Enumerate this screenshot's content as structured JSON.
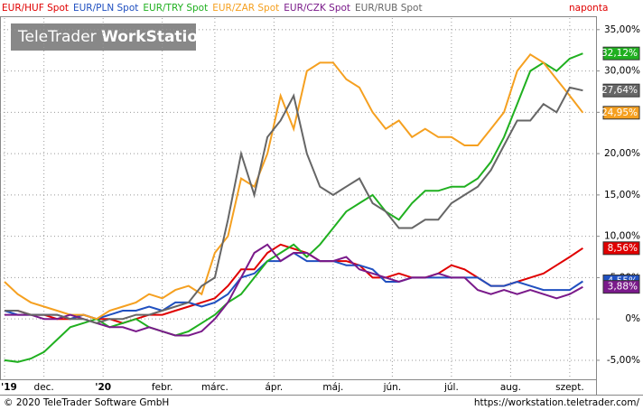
{
  "chart_data": {
    "type": "line",
    "watermark": [
      "TeleTrader",
      "WorkStation"
    ],
    "frequency": "naponta",
    "footer_left": "© 2020 TeleTrader Software GmbH",
    "footer_right": "https://workstation.teletrader.com/",
    "grid": true,
    "x": [
      0,
      1,
      2,
      3,
      4,
      5,
      6,
      7,
      8,
      9,
      10,
      11,
      12,
      13,
      14,
      15,
      16,
      17,
      18,
      19,
      20,
      21,
      22,
      23,
      24,
      25,
      26,
      27,
      28,
      29,
      30,
      31,
      32,
      33,
      34,
      35,
      36,
      37,
      38,
      39,
      40,
      41,
      42,
      43,
      44
    ],
    "xlim": [
      0,
      45
    ],
    "xticks": [
      {
        "value": 0,
        "label": "'19"
      },
      {
        "value": 3,
        "label": "dec."
      },
      {
        "value": 7.5,
        "label": "'20"
      },
      {
        "value": 12,
        "label": "febr."
      },
      {
        "value": 16,
        "label": "márc."
      },
      {
        "value": 20.5,
        "label": "ápr."
      },
      {
        "value": 25,
        "label": "máj."
      },
      {
        "value": 29.5,
        "label": "jún."
      },
      {
        "value": 34,
        "label": "júl."
      },
      {
        "value": 38.5,
        "label": "aug."
      },
      {
        "value": 43,
        "label": "szept."
      }
    ],
    "ylim": [
      -7.3,
      36.4
    ],
    "yticks": [
      {
        "value": 35,
        "label": "35,00%"
      },
      {
        "value": 30,
        "label": "30,00%"
      },
      {
        "value": 25,
        "label": "25,00%"
      },
      {
        "value": 20,
        "label": "20,00%"
      },
      {
        "value": 15,
        "label": "15,00%"
      },
      {
        "value": 10,
        "label": "10,00%"
      },
      {
        "value": 5,
        "label": "5,00%"
      },
      {
        "value": 0,
        "label": "0%"
      },
      {
        "value": -5,
        "label": "-5,00%"
      }
    ],
    "series": [
      {
        "name": "EUR/HUF Spot",
        "color": "#e00000",
        "values": [
          1,
          1,
          0.5,
          0.5,
          0,
          0,
          0.5,
          0,
          0,
          -0.5,
          0,
          0.5,
          0.5,
          1,
          1.5,
          2,
          2.5,
          4,
          6,
          6,
          8,
          9,
          8.5,
          8,
          7,
          7,
          7,
          6.5,
          5,
          5,
          5.5,
          5,
          5,
          5.5,
          6.5,
          6,
          5,
          4,
          4,
          4.5,
          5,
          5.5,
          6.5,
          7.5,
          8.56
        ],
        "value_labels": [
          null,
          null,
          null,
          null,
          null,
          null,
          null,
          null,
          null,
          null,
          null,
          null,
          null,
          null,
          null,
          null,
          null,
          null,
          null,
          null,
          null,
          null,
          null,
          null,
          null,
          null,
          null,
          null,
          null,
          null,
          null,
          null,
          null,
          null,
          null,
          null,
          null,
          null,
          null,
          null,
          null,
          null,
          null,
          null,
          "8,56%"
        ]
      },
      {
        "name": "EUR/PLN Spot",
        "color": "#2050c0",
        "values": [
          1,
          0.5,
          0.5,
          0.5,
          0.5,
          0,
          0.5,
          0,
          0.5,
          1,
          1,
          1.5,
          1,
          2,
          2,
          1.5,
          2,
          3,
          5,
          5.5,
          7,
          7,
          8,
          7,
          7,
          7,
          6.5,
          6.5,
          6,
          4.5,
          4.5,
          5,
          5,
          5,
          5,
          5,
          5,
          4,
          4,
          4.5,
          4,
          3.5,
          3.5,
          3.5,
          4.55
        ],
        "value_labels": [
          null,
          null,
          null,
          null,
          null,
          null,
          null,
          null,
          null,
          null,
          null,
          null,
          null,
          null,
          null,
          null,
          null,
          null,
          null,
          null,
          null,
          null,
          null,
          null,
          null,
          null,
          null,
          null,
          null,
          null,
          null,
          null,
          null,
          null,
          null,
          null,
          null,
          null,
          null,
          null,
          null,
          null,
          null,
          null,
          "4,55%"
        ]
      },
      {
        "name": "EUR/TRY Spot",
        "color": "#20b020",
        "values": [
          -5,
          -5.2,
          -4.8,
          -4,
          -2.5,
          -1,
          -0.5,
          0,
          -1,
          -0.5,
          0,
          -1,
          -1.5,
          -2,
          -1.5,
          -0.5,
          0.5,
          2,
          3,
          5,
          7,
          8,
          9,
          7.5,
          9,
          11,
          13,
          14,
          15,
          13,
          12,
          14,
          15.5,
          15.5,
          16,
          16,
          17,
          19,
          22,
          26,
          30,
          31,
          30,
          31.5,
          32.12
        ],
        "value_labels": [
          null,
          null,
          null,
          null,
          null,
          null,
          null,
          null,
          null,
          null,
          null,
          null,
          null,
          null,
          null,
          null,
          null,
          null,
          null,
          null,
          null,
          null,
          null,
          null,
          null,
          null,
          null,
          null,
          null,
          null,
          null,
          null,
          null,
          null,
          null,
          null,
          null,
          null,
          null,
          null,
          null,
          null,
          null,
          null,
          "32,12%"
        ]
      },
      {
        "name": "EUR/ZAR Spot",
        "color": "#f5a020",
        "values": [
          4.5,
          3,
          2,
          1.5,
          1,
          0.5,
          0.5,
          0,
          1,
          1.5,
          2,
          3,
          2.5,
          3.5,
          4,
          3,
          8,
          10,
          17,
          16,
          20,
          27,
          23,
          30,
          31,
          31,
          29,
          28,
          25,
          23,
          24,
          22,
          23,
          22,
          22,
          21,
          21,
          23,
          25,
          30,
          32,
          31,
          29,
          27,
          24.95
        ],
        "value_labels": [
          null,
          null,
          null,
          null,
          null,
          null,
          null,
          null,
          null,
          null,
          null,
          null,
          null,
          null,
          null,
          null,
          null,
          null,
          null,
          null,
          null,
          null,
          null,
          null,
          null,
          null,
          null,
          null,
          null,
          null,
          null,
          null,
          null,
          null,
          null,
          null,
          null,
          null,
          null,
          null,
          null,
          null,
          null,
          null,
          "24,95%"
        ]
      },
      {
        "name": "EUR/CZK Spot",
        "color": "#7a1a8a",
        "values": [
          0.5,
          0.5,
          0.5,
          0,
          0,
          0.5,
          0,
          -0.5,
          -1,
          -1,
          -1.5,
          -1,
          -1.5,
          -2,
          -2,
          -1.5,
          0,
          2,
          5,
          8,
          9,
          7,
          8,
          8,
          7,
          7,
          7.5,
          6,
          5.5,
          5,
          4.5,
          5,
          5,
          5.5,
          5,
          5,
          3.5,
          3,
          3.5,
          3,
          3.5,
          3,
          2.5,
          3,
          3.88
        ],
        "value_labels": [
          null,
          null,
          null,
          null,
          null,
          null,
          null,
          null,
          null,
          null,
          null,
          null,
          null,
          null,
          null,
          null,
          null,
          null,
          null,
          null,
          null,
          null,
          null,
          null,
          null,
          null,
          null,
          null,
          null,
          null,
          null,
          null,
          null,
          null,
          null,
          null,
          null,
          null,
          null,
          null,
          null,
          null,
          null,
          null,
          "3,88%"
        ]
      },
      {
        "name": "EUR/RUB Spot",
        "color": "#666666",
        "values": [
          1,
          1,
          0.5,
          0.5,
          0.5,
          0,
          0,
          -0.5,
          0,
          0,
          0.5,
          0.5,
          1,
          1.5,
          2,
          4,
          5,
          12,
          20,
          15,
          22,
          24,
          27,
          20,
          16,
          15,
          16,
          17,
          14,
          13,
          11,
          11,
          12,
          12,
          14,
          15,
          16,
          18,
          21,
          24,
          24,
          26,
          25,
          28,
          27.64
        ],
        "value_labels": [
          null,
          null,
          null,
          null,
          null,
          null,
          null,
          null,
          null,
          null,
          null,
          null,
          null,
          null,
          null,
          null,
          null,
          null,
          null,
          null,
          null,
          null,
          null,
          null,
          null,
          null,
          null,
          null,
          null,
          null,
          null,
          null,
          null,
          null,
          null,
          null,
          null,
          null,
          null,
          null,
          null,
          null,
          null,
          null,
          "27,64%"
        ]
      }
    ]
  }
}
